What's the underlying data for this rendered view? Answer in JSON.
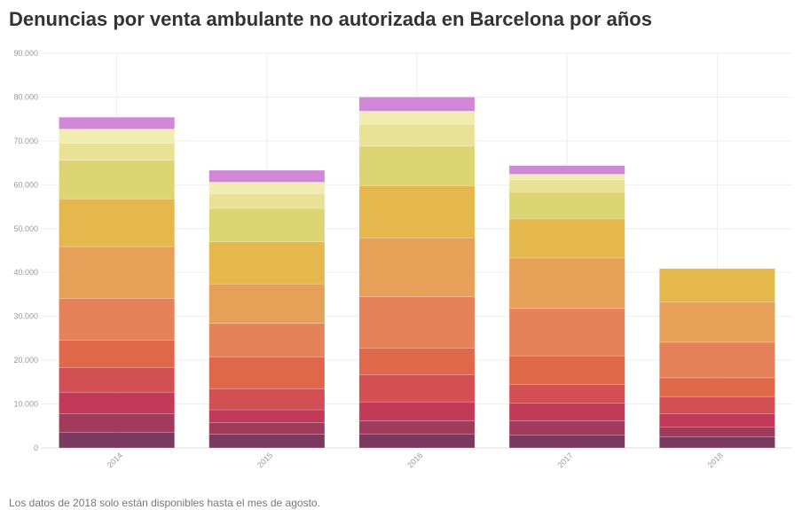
{
  "header": {
    "title": "Denuncias por venta ambulante no autorizada en Barcelona por años"
  },
  "footer": {
    "note": "Los datos de 2018 solo están disponibles hasta el mes de agosto."
  },
  "chart_data": {
    "type": "bar",
    "stacked": true,
    "title": "Denuncias por venta ambulante no autorizada en Barcelona por años",
    "xlabel": "",
    "ylabel": "",
    "ylim": [
      0,
      90000
    ],
    "y_ticks": [
      "0",
      "10.000",
      "20.000",
      "30.000",
      "40.000",
      "50.000",
      "60.000",
      "70.000",
      "80.000",
      "90.000"
    ],
    "categories": [
      "2014",
      "2015",
      "2016",
      "2017",
      "2018"
    ],
    "grid": true,
    "legend": "none",
    "series": [
      {
        "color": "#7a3a60",
        "values": [
          3600,
          3100,
          3200,
          2900,
          2500
        ]
      },
      {
        "color": "#a23a5b",
        "values": [
          4200,
          2700,
          3000,
          3300,
          2300
        ]
      },
      {
        "color": "#c23a57",
        "values": [
          4900,
          2900,
          4300,
          4000,
          3000
        ]
      },
      {
        "color": "#d24f53",
        "values": [
          5600,
          4800,
          6200,
          4300,
          3900
        ]
      },
      {
        "color": "#e0684a",
        "values": [
          6300,
          7300,
          6100,
          6500,
          4300
        ]
      },
      {
        "color": "#e5825a",
        "values": [
          9500,
          7600,
          11700,
          10800,
          8100
        ]
      },
      {
        "color": "#e6a058",
        "values": [
          11800,
          9000,
          13400,
          11500,
          9200
        ]
      },
      {
        "color": "#e5b84d",
        "values": [
          10900,
          9600,
          11900,
          8900,
          7600
        ]
      },
      {
        "color": "#ddd574",
        "values": [
          8800,
          7600,
          9000,
          6200,
          0
        ]
      },
      {
        "color": "#e9e294",
        "values": [
          3900,
          3400,
          5000,
          2700,
          0
        ]
      },
      {
        "color": "#f1ecb2",
        "values": [
          3200,
          2600,
          3000,
          1300,
          0
        ]
      },
      {
        "color": "#d087d6",
        "values": [
          2700,
          2700,
          3200,
          2000,
          0
        ]
      }
    ]
  }
}
